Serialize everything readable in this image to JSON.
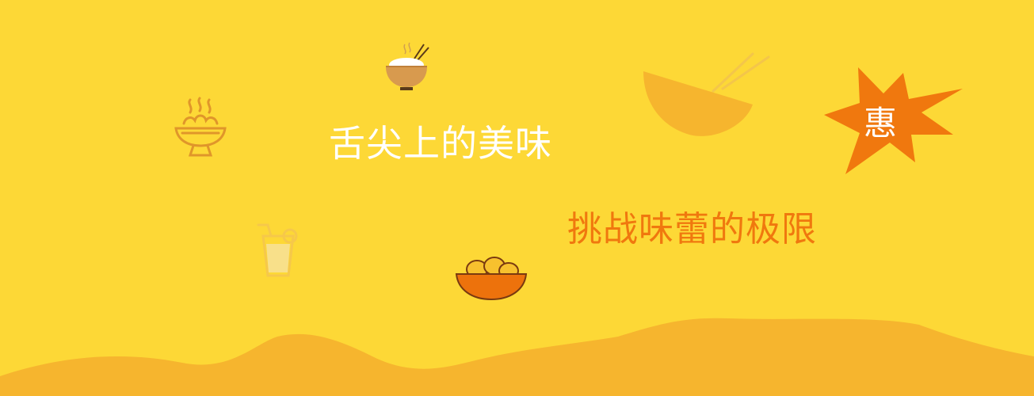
{
  "banner": {
    "headline": "舌尖上的美味",
    "tagline": "挑战味蕾的极限",
    "badge": "惠"
  },
  "icons": [
    "rice-bowl-icon",
    "steaming-bowl-icon",
    "drink-cup-icon",
    "egg-basket-icon",
    "bowl-chopsticks-icon",
    "starburst-icon"
  ],
  "colors": {
    "background": "#fdd836",
    "hills": "#f6b52e",
    "accent": "#f0780e",
    "headline": "#ffffff"
  }
}
